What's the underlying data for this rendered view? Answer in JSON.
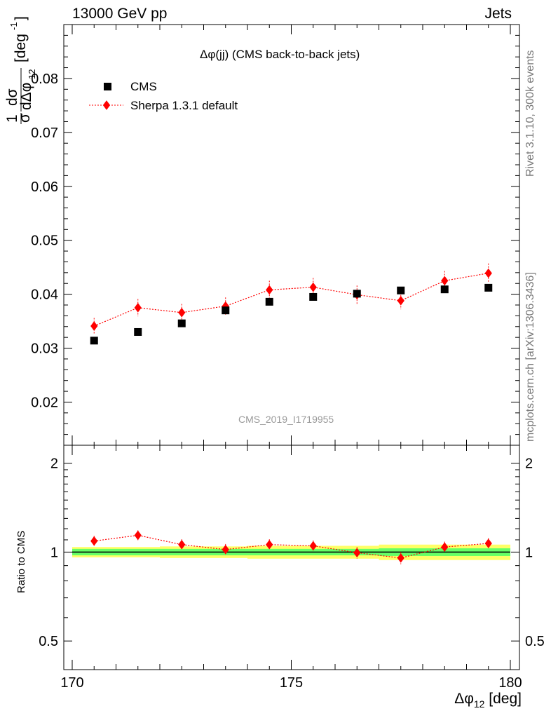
{
  "header": {
    "left": "13000 GeV pp",
    "right": "Jets"
  },
  "side": {
    "rivet": "Rivet 3.1.10,  300k events",
    "mcplots": "mcplots.cern.ch [arXiv:1306.3436]"
  },
  "watermark": "CMS_2019_I1719955",
  "chart_data": [
    {
      "type": "scatter",
      "title": "Δφ(jj) (CMS back-to-back jets)",
      "ylabel": "1/σ dσ/dΔφ12 [deg⁻¹]",
      "xlabel": "Δφ12 [deg]",
      "xlim": [
        170,
        180
      ],
      "ylim": [
        0.012,
        0.09
      ],
      "yticks": [
        0.02,
        0.03,
        0.04,
        0.05,
        0.06,
        0.07,
        0.08
      ],
      "xticks": [
        170,
        175,
        180
      ],
      "legend_position": "top-left",
      "x": [
        170.5,
        171.5,
        172.5,
        173.5,
        174.5,
        175.5,
        176.5,
        177.5,
        178.5,
        179.5
      ],
      "series": [
        {
          "name": "CMS",
          "color": "#000000",
          "marker": "square",
          "values": [
            0.0314,
            0.033,
            0.0346,
            0.037,
            0.0386,
            0.0395,
            0.0401,
            0.0407,
            0.0409,
            0.0412
          ],
          "errors": [
            0.0005,
            0.0005,
            0.0005,
            0.0005,
            0.0005,
            0.0005,
            0.0005,
            0.0006,
            0.0006,
            0.0006
          ]
        },
        {
          "name": "Sherpa 1.3.1 default",
          "color": "#ff0000",
          "marker": "diamond",
          "line": "dotted",
          "values": [
            0.0341,
            0.0375,
            0.0366,
            0.0378,
            0.0408,
            0.0413,
            0.0399,
            0.0388,
            0.0425,
            0.0439
          ],
          "errors": [
            0.0015,
            0.0016,
            0.0016,
            0.0016,
            0.0017,
            0.0017,
            0.0017,
            0.0016,
            0.0018,
            0.0018
          ]
        }
      ]
    },
    {
      "type": "scatter",
      "ylabel": "Ratio to CMS",
      "xlabel": "Δφ12 [deg]",
      "xlim": [
        170,
        180
      ],
      "ylim": [
        0.4,
        2.3
      ],
      "y_scale": "log",
      "yticks": [
        0.5,
        1,
        2
      ],
      "xticks": [
        170,
        175,
        180
      ],
      "x": [
        170.5,
        171.5,
        172.5,
        173.5,
        174.5,
        175.5,
        176.5,
        177.5,
        178.5,
        179.5
      ],
      "band": {
        "color_inner": "#66ff66",
        "color_outer": "#ffff66",
        "inner": [
          0.025,
          0.025,
          0.025,
          0.025,
          0.025,
          0.025,
          0.025,
          0.03,
          0.03,
          0.03
        ],
        "outer": [
          0.04,
          0.04,
          0.045,
          0.045,
          0.05,
          0.05,
          0.05,
          0.06,
          0.06,
          0.06
        ]
      },
      "series": [
        {
          "name": "Sherpa 1.3.1 default",
          "color": "#ff0000",
          "marker": "diamond",
          "line": "dotted",
          "values": [
            1.09,
            1.14,
            1.06,
            1.02,
            1.06,
            1.05,
            0.995,
            0.955,
            1.04,
            1.07
          ],
          "errors": [
            0.045,
            0.045,
            0.045,
            0.045,
            0.045,
            0.045,
            0.045,
            0.045,
            0.045,
            0.045
          ]
        }
      ]
    }
  ]
}
